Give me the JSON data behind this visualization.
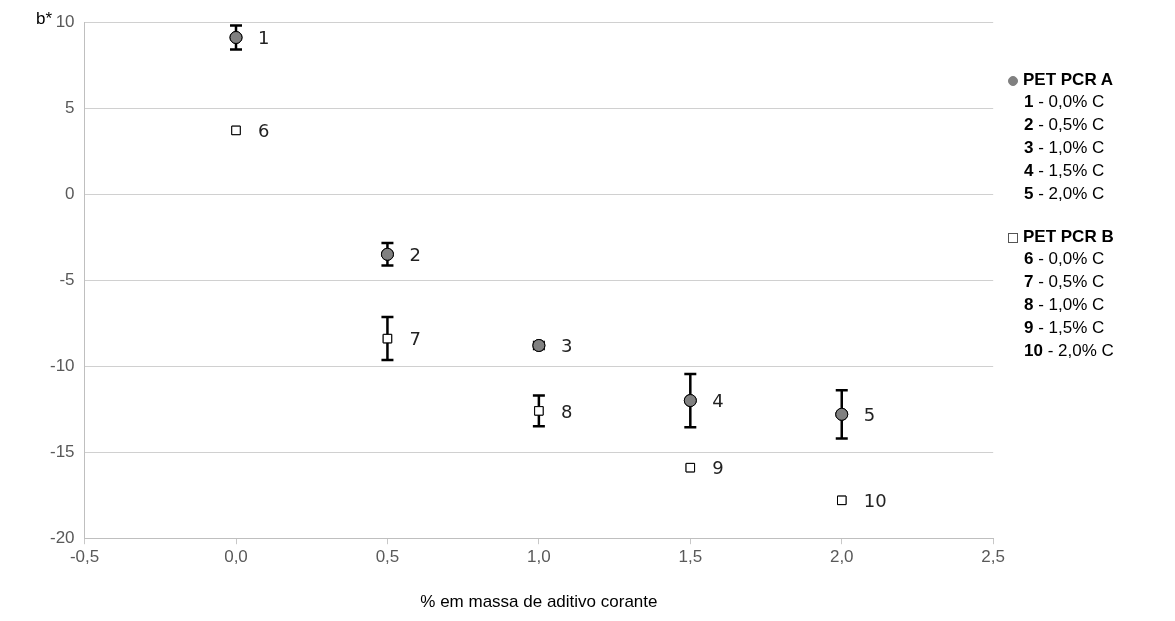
{
  "chart_data": {
    "type": "scatter",
    "xlabel": "% em massa de aditivo corante",
    "ylabel": "b*",
    "xlim": [
      -0.5,
      2.5
    ],
    "xticks": [
      {
        "value": -0.5,
        "label": "-0,5"
      },
      {
        "value": 0,
        "label": "0,0"
      },
      {
        "value": 0.5,
        "label": "0,5"
      },
      {
        "value": 1,
        "label": "1,0"
      },
      {
        "value": 1.5,
        "label": "1,5"
      },
      {
        "value": 2,
        "label": "2,0"
      },
      {
        "value": 2.5,
        "label": "2,5"
      }
    ],
    "ylim": [
      -20,
      10
    ],
    "yticks": [
      -20,
      -15,
      -10,
      -5,
      0,
      5,
      10
    ],
    "grid": "y",
    "legend": "right",
    "x": [
      0,
      0.5,
      1,
      1.5,
      2
    ],
    "series": [
      {
        "name": "PET PCR A",
        "color": "#808080",
        "marker": "circle",
        "values": [
          9.1,
          -3.5,
          -8.8,
          -12.0,
          -12.8
        ],
        "errors": [
          0.7,
          0.65,
          0.2,
          1.55,
          1.4
        ]
      },
      {
        "name": "PET PCR B",
        "color": "#ffffff",
        "marker": "square",
        "values": [
          3.7,
          -8.4,
          -12.6,
          -15.9,
          -17.8
        ],
        "errors": [
          null,
          1.25,
          0.9,
          null,
          null
        ]
      }
    ],
    "annotations": [
      {
        "text": "1",
        "x": 0,
        "y": 9.1
      },
      {
        "text": "2",
        "x": 0.5,
        "y": -3.5
      },
      {
        "text": "3",
        "x": 1,
        "y": -8.8
      },
      {
        "text": "4",
        "x": 1.5,
        "y": -12.0
      },
      {
        "text": "5",
        "x": 2,
        "y": -12.8
      },
      {
        "text": "6",
        "x": 0,
        "y": 3.7
      },
      {
        "text": "7",
        "x": 0.5,
        "y": -8.4
      },
      {
        "text": "8",
        "x": 1,
        "y": -12.6
      },
      {
        "text": "9",
        "x": 1.5,
        "y": -15.9
      },
      {
        "text": "10",
        "x": 2,
        "y": -17.8
      },
      "1 - 0,0% C",
      "2 - 0,5% C",
      "3 - 1,0% C",
      "4 - 1,5% C",
      "5 - 2,0% C",
      "6 - 0,0% C",
      "7 - 0,5% C",
      "8 - 1,0% C",
      "9 - 1,5% C",
      "10 - 2,0% C"
    ]
  }
}
